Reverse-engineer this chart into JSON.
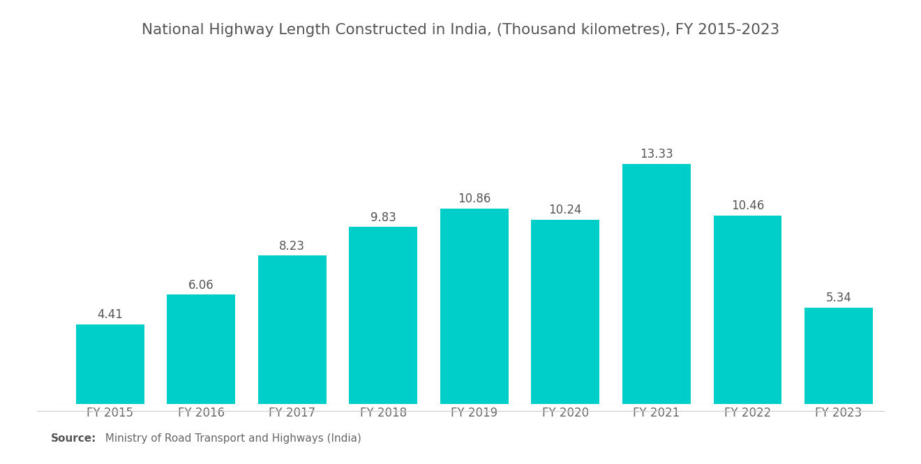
{
  "title": "National Highway Length Constructed in India, (Thousand kilometres), FY 2015-2023",
  "categories": [
    "FY 2015",
    "FY 2016",
    "FY 2017",
    "FY 2018",
    "FY 2019",
    "FY 2020",
    "FY 2021",
    "FY 2022",
    "FY 2023"
  ],
  "values": [
    4.41,
    6.06,
    8.23,
    9.83,
    10.86,
    10.24,
    13.33,
    10.46,
    5.34
  ],
  "bar_color": "#00CEC9",
  "bar_width": 0.75,
  "title_fontsize": 15.5,
  "tick_fontsize": 12,
  "value_fontsize": 12,
  "ylim": [
    0,
    16
  ],
  "background_color": "#ffffff",
  "source_bold": "Source:",
  "source_text": "  Ministry of Road Transport and Highways (India)",
  "source_fontsize": 11,
  "value_color": "#555555",
  "tick_color": "#666666",
  "title_color": "#555555"
}
